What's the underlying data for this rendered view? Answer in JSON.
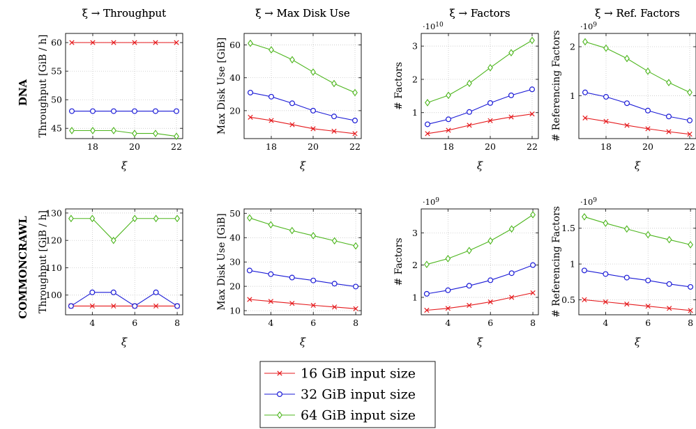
{
  "figure": {
    "rows": [
      "DNA",
      "COMMONCRAWL"
    ],
    "legend": [
      {
        "label": "16 GiB input size",
        "color": "#e5191c",
        "marker": "x"
      },
      {
        "label": "32 GiB input size",
        "color": "#1a1ad6",
        "marker": "o"
      },
      {
        "label": "64 GiB input size",
        "color": "#4cb51c",
        "marker": "diamond"
      }
    ]
  },
  "chart_data": [
    {
      "type": "line",
      "row": "DNA",
      "title": "ξ → Throughput",
      "xlabel": "ξ",
      "ylabel": "Throughput [GiB / h]",
      "x": [
        17,
        18,
        19,
        20,
        21,
        22
      ],
      "xlim": [
        16.7,
        22.3
      ],
      "xticks": [
        18,
        20,
        22
      ],
      "ylim": [
        43.2,
        61.6
      ],
      "yticks": [
        45,
        50,
        55,
        60
      ],
      "yticklabels": [
        "45",
        "50",
        "55",
        "60"
      ],
      "grid": true,
      "exponent": "",
      "series": [
        {
          "name": "16 GiB input size",
          "values": [
            60,
            60,
            60,
            60,
            60,
            60
          ]
        },
        {
          "name": "32 GiB input size",
          "values": [
            48,
            48,
            48,
            48,
            48,
            48
          ]
        },
        {
          "name": "64 GiB input size",
          "values": [
            44.6,
            44.6,
            44.6,
            44.1,
            44.1,
            43.6
          ]
        }
      ]
    },
    {
      "type": "line",
      "row": "DNA",
      "title": "ξ → Max Disk Use",
      "xlabel": "ξ",
      "ylabel": "Max Disk Use [GiB]",
      "x": [
        17,
        18,
        19,
        20,
        21,
        22
      ],
      "xlim": [
        16.7,
        22.3
      ],
      "xticks": [
        18,
        20,
        22
      ],
      "ylim": [
        3,
        67
      ],
      "yticks": [
        20,
        40,
        60
      ],
      "yticklabels": [
        "20",
        "40",
        "60"
      ],
      "grid": true,
      "exponent": "",
      "series": [
        {
          "name": "16 GiB input size",
          "values": [
            16,
            14,
            11.5,
            9,
            7.5,
            6
          ]
        },
        {
          "name": "32 GiB input size",
          "values": [
            31,
            28.5,
            24.5,
            20,
            16.5,
            14
          ]
        },
        {
          "name": "64 GiB input size",
          "values": [
            61,
            57,
            51,
            43.5,
            36.5,
            31
          ]
        }
      ]
    },
    {
      "type": "line",
      "row": "DNA",
      "title": "ξ → Factors",
      "xlabel": "ξ",
      "ylabel": "# Factors",
      "x": [
        17,
        18,
        19,
        20,
        21,
        22
      ],
      "xlim": [
        16.7,
        22.3
      ],
      "xticks": [
        18,
        20,
        22
      ],
      "ylim": [
        0.22,
        3.38
      ],
      "yticks": [
        1,
        2,
        3
      ],
      "yticklabels": [
        "1",
        "2",
        "3"
      ],
      "grid": true,
      "exponent": "·10^10",
      "series": [
        {
          "name": "16 GiB input size",
          "values": [
            0.37,
            0.47,
            0.62,
            0.76,
            0.87,
            0.96
          ]
        },
        {
          "name": "32 GiB input size",
          "values": [
            0.65,
            0.8,
            1.02,
            1.29,
            1.52,
            1.7
          ]
        },
        {
          "name": "64 GiB input size",
          "values": [
            1.3,
            1.52,
            1.88,
            2.35,
            2.8,
            3.17
          ]
        }
      ]
    },
    {
      "type": "line",
      "row": "DNA",
      "title": "ξ → Ref. Factors",
      "xlabel": "ξ",
      "ylabel": "# Referencing Factors",
      "x": [
        17,
        18,
        19,
        20,
        21,
        22
      ],
      "xlim": [
        16.7,
        22.3
      ],
      "xticks": [
        18,
        20,
        22
      ],
      "ylim": [
        0.13,
        2.27
      ],
      "yticks": [
        1,
        2
      ],
      "yticklabels": [
        "1",
        "2"
      ],
      "grid": true,
      "exponent": "·10^9",
      "series": [
        {
          "name": "16 GiB input size",
          "values": [
            0.55,
            0.48,
            0.4,
            0.33,
            0.27,
            0.22
          ]
        },
        {
          "name": "32 GiB input size",
          "values": [
            1.07,
            0.98,
            0.85,
            0.7,
            0.58,
            0.5
          ]
        },
        {
          "name": "64 GiB input size",
          "values": [
            2.1,
            1.97,
            1.76,
            1.5,
            1.27,
            1.07
          ]
        }
      ]
    },
    {
      "type": "line",
      "row": "COMMONCRAWL",
      "title": "ξ → Throughput",
      "xlabel": "ξ",
      "ylabel": "Throughput [GiB / h]",
      "x": [
        3,
        4,
        5,
        6,
        7,
        8
      ],
      "xlim": [
        2.74,
        8.26
      ],
      "xticks": [
        4,
        6,
        8
      ],
      "ylim": [
        92.8,
        131.5
      ],
      "yticks": [
        100,
        110,
        120,
        130
      ],
      "yticklabels": [
        "100",
        "110",
        "120",
        "130"
      ],
      "grid": true,
      "exponent": "",
      "series": [
        {
          "name": "16 GiB input size",
          "values": [
            96,
            96,
            96,
            96,
            96,
            96
          ]
        },
        {
          "name": "32 GiB input size",
          "values": [
            96,
            101,
            101,
            96,
            101,
            96
          ]
        },
        {
          "name": "64 GiB input size",
          "values": [
            128,
            128,
            120,
            128,
            128,
            128
          ]
        }
      ]
    },
    {
      "type": "line",
      "row": "COMMONCRAWL",
      "title": "ξ → Max Disk Use",
      "xlabel": "ξ",
      "ylabel": "Max Disk Use [GiB]",
      "x": [
        3,
        4,
        5,
        6,
        7,
        8
      ],
      "xlim": [
        2.74,
        8.26
      ],
      "xticks": [
        4,
        6,
        8
      ],
      "ylim": [
        8.3,
        51.8
      ],
      "yticks": [
        10,
        20,
        30,
        40,
        50
      ],
      "yticklabels": [
        "10",
        "20",
        "30",
        "40",
        "50"
      ],
      "grid": true,
      "exponent": "",
      "series": [
        {
          "name": "16 GiB input size",
          "values": [
            14.6,
            13.8,
            13,
            12.2,
            11.5,
            10.8
          ]
        },
        {
          "name": "32 GiB input size",
          "values": [
            26.5,
            25,
            23.6,
            22.4,
            21.1,
            19.9
          ]
        },
        {
          "name": "64 GiB input size",
          "values": [
            48.1,
            45.3,
            42.9,
            40.8,
            38.7,
            36.6
          ]
        }
      ]
    },
    {
      "type": "line",
      "row": "COMMONCRAWL",
      "title": "ξ → Factors",
      "xlabel": "ξ",
      "ylabel": "# Factors",
      "x": [
        3,
        4,
        5,
        6,
        7,
        8
      ],
      "xlim": [
        2.74,
        8.26
      ],
      "xticks": [
        4,
        6,
        8
      ],
      "ylim": [
        0.46,
        3.74
      ],
      "yticks": [
        1,
        2,
        3
      ],
      "yticklabels": [
        "1",
        "2",
        "3"
      ],
      "grid": true,
      "exponent": "·10^9",
      "series": [
        {
          "name": "16 GiB input size",
          "values": [
            0.6,
            0.66,
            0.75,
            0.86,
            1.0,
            1.14
          ]
        },
        {
          "name": "32 GiB input size",
          "values": [
            1.11,
            1.22,
            1.36,
            1.53,
            1.75,
            2.0
          ]
        },
        {
          "name": "64 GiB input size",
          "values": [
            2.02,
            2.2,
            2.45,
            2.75,
            3.12,
            3.56
          ]
        }
      ]
    },
    {
      "type": "line",
      "row": "COMMONCRAWL",
      "title": "ξ → Ref. Factors",
      "xlabel": "ξ",
      "ylabel": "# Referencing Factors",
      "x": [
        3,
        4,
        5,
        6,
        7,
        8
      ],
      "xlim": [
        2.74,
        8.26
      ],
      "xticks": [
        4,
        6,
        8
      ],
      "ylim": [
        0.29,
        1.77
      ],
      "yticks": [
        0.5,
        1,
        1.5
      ],
      "yticklabels": [
        "0.5",
        "1",
        "1.5"
      ],
      "grid": true,
      "exponent": "·10^9",
      "series": [
        {
          "name": "16 GiB input size",
          "values": [
            0.5,
            0.47,
            0.44,
            0.41,
            0.38,
            0.35
          ]
        },
        {
          "name": "32 GiB input size",
          "values": [
            0.91,
            0.86,
            0.81,
            0.77,
            0.72,
            0.68
          ]
        },
        {
          "name": "64 GiB input size",
          "values": [
            1.66,
            1.57,
            1.49,
            1.41,
            1.34,
            1.27
          ]
        }
      ]
    }
  ]
}
